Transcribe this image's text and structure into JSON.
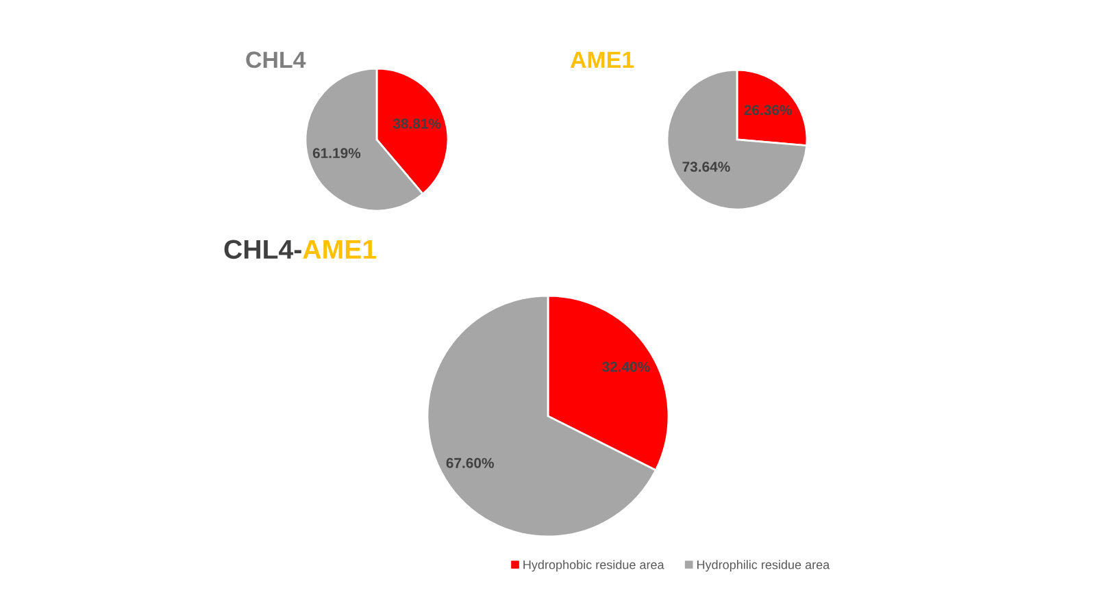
{
  "chart_data": [
    {
      "type": "pie",
      "title": "CHL4",
      "categories": [
        null,
        null
      ],
      "values": [
        38.81,
        61.19
      ],
      "colors": [
        "#ff0000",
        "#a6a6a6"
      ],
      "value_labels": [
        "38.81%",
        "61.19%"
      ]
    },
    {
      "type": "pie",
      "title": "AME1",
      "categories": [
        null,
        null
      ],
      "values": [
        26.36,
        73.64
      ],
      "colors": [
        "#ff0000",
        "#a6a6a6"
      ],
      "value_labels": [
        "26.36%",
        "73.64%"
      ]
    },
    {
      "type": "pie",
      "title": "CHL4-AME1",
      "categories": [
        "Hydrophobic residue area",
        "Hydrophilic residue area"
      ],
      "values": [
        32.4,
        67.6
      ],
      "colors": [
        "#ff0000",
        "#a6a6a6"
      ],
      "value_labels": [
        "32.40%",
        "67.60%"
      ],
      "legend": "bottom"
    }
  ]
}
